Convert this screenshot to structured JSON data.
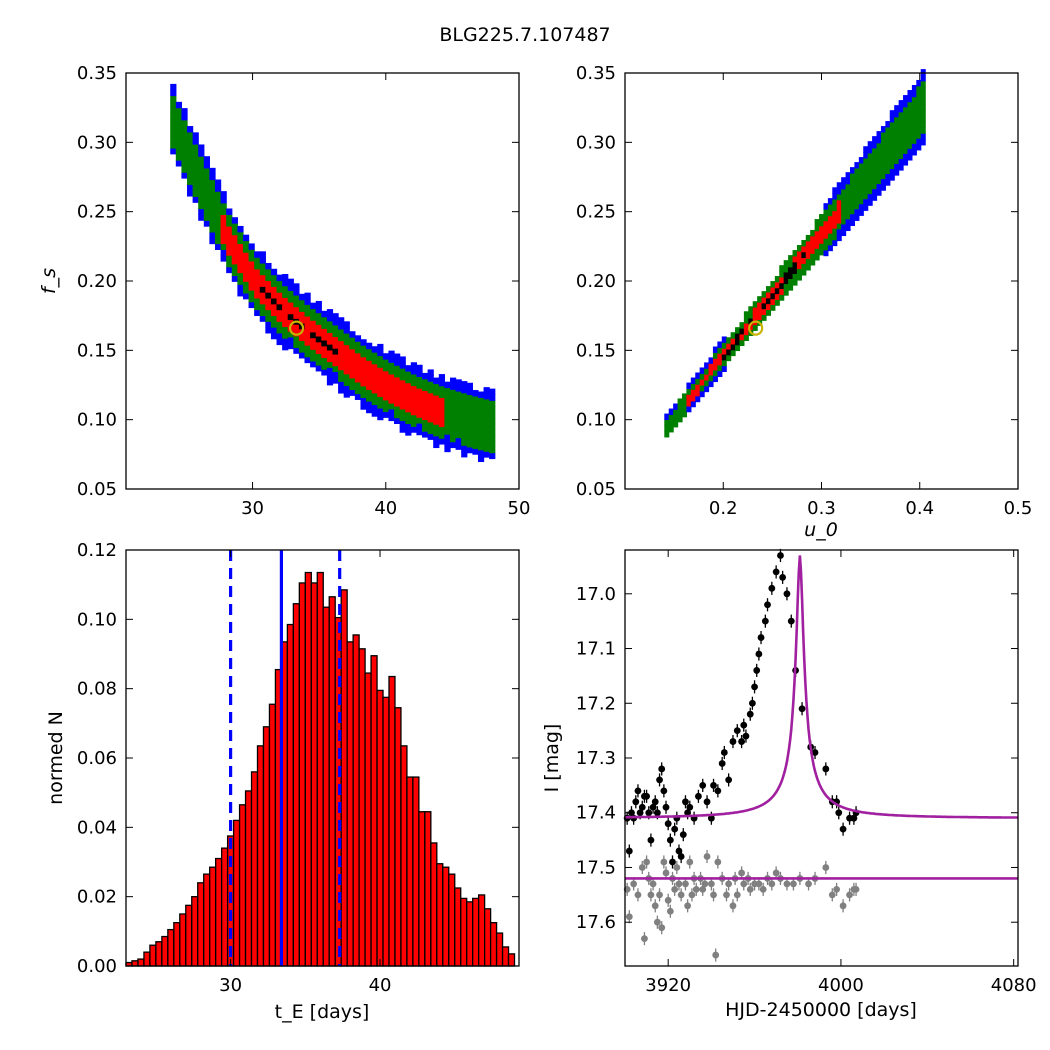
{
  "figure": {
    "title": "BLG225.7.107487"
  },
  "chart_data": [
    {
      "id": "ul",
      "type": "heatmap",
      "title": "",
      "xlabel": "",
      "ylabel": "f_s",
      "xlim": [
        20.5,
        50
      ],
      "ylim": [
        0.05,
        0.35
      ],
      "xticks": [
        30,
        40,
        50
      ],
      "yticks": [
        0.05,
        0.1,
        0.15,
        0.2,
        0.25,
        0.3,
        0.35
      ],
      "ytick_labels": [
        "0.05",
        "0.10",
        "0.15",
        "0.20",
        "0.25",
        "0.30",
        "0.35"
      ],
      "levels": [
        {
          "name": "outer",
          "color": "#0000ff"
        },
        {
          "name": "middle",
          "color": "#008000"
        },
        {
          "name": "inner",
          "color": "#ff0000"
        },
        {
          "name": "core",
          "color": "#000000"
        }
      ],
      "ridge": [
        [
          23.5,
          0.32
        ],
        [
          26,
          0.268
        ],
        [
          28,
          0.228
        ],
        [
          30,
          0.198
        ],
        [
          32,
          0.178
        ],
        [
          34,
          0.162
        ],
        [
          36,
          0.148
        ],
        [
          38,
          0.134
        ],
        [
          40,
          0.122
        ],
        [
          42,
          0.112
        ],
        [
          44,
          0.104
        ],
        [
          46,
          0.098
        ],
        [
          48,
          0.093
        ]
      ],
      "best_fit": {
        "x": 33.3,
        "y": 0.166,
        "color": "#c8b400"
      }
    },
    {
      "id": "ur",
      "type": "heatmap",
      "title": "",
      "xlabel": "u_0",
      "ylabel": "",
      "xlim": [
        0.1,
        0.5
      ],
      "ylim": [
        0.05,
        0.35
      ],
      "xticks": [
        0.2,
        0.3,
        0.4,
        0.5
      ],
      "xtick_labels": [
        "0.2",
        "0.3",
        "0.4",
        "0.5"
      ],
      "yticks": [
        0.05,
        0.1,
        0.15,
        0.2,
        0.25,
        0.3,
        0.35
      ],
      "ytick_labels": [
        "0.05",
        "0.10",
        "0.15",
        "0.20",
        "0.25",
        "0.30",
        "0.35"
      ],
      "levels": [
        {
          "name": "outer",
          "color": "#0000ff"
        },
        {
          "name": "middle",
          "color": "#008000"
        },
        {
          "name": "inner",
          "color": "#ff0000"
        },
        {
          "name": "core",
          "color": "#000000"
        }
      ],
      "ridge": [
        [
          0.14,
          0.093
        ],
        [
          0.4,
          0.322
        ]
      ],
      "best_fit": {
        "x": 0.233,
        "y": 0.166,
        "color": "#c8b400"
      }
    },
    {
      "id": "ll",
      "type": "bar",
      "title": "",
      "xlabel": "t_E [days]",
      "ylabel": "normed N",
      "xlim": [
        23,
        49.3
      ],
      "ylim": [
        0,
        0.12
      ],
      "xticks": [
        30,
        40
      ],
      "yticks": [
        0,
        0.02,
        0.04,
        0.06,
        0.08,
        0.1,
        0.12
      ],
      "ytick_labels": [
        "0.00",
        "0.02",
        "0.04",
        "0.06",
        "0.08",
        "0.10",
        "0.12"
      ],
      "bin_start": 23,
      "bin_width": 0.4,
      "values": [
        0.001,
        0.0015,
        0.002,
        0.004,
        0.006,
        0.007,
        0.0085,
        0.0105,
        0.0125,
        0.015,
        0.0175,
        0.02,
        0.024,
        0.0265,
        0.0285,
        0.031,
        0.034,
        0.0375,
        0.042,
        0.0465,
        0.0505,
        0.056,
        0.0635,
        0.069,
        0.0755,
        0.0855,
        0.0935,
        0.0985,
        0.1045,
        0.1105,
        0.1135,
        0.1105,
        0.1135,
        0.1035,
        0.1065,
        0.1005,
        0.1085,
        0.0935,
        0.0955,
        0.0915,
        0.0845,
        0.0895,
        0.0795,
        0.0775,
        0.0835,
        0.0745,
        0.0635,
        0.0545,
        0.0545,
        0.0445,
        0.0445,
        0.0355,
        0.0295,
        0.0285,
        0.0265,
        0.0225,
        0.0195,
        0.0185,
        0.0195,
        0.0205,
        0.0165,
        0.0125,
        0.0095,
        0.0055,
        0.0035,
        0.0025,
        0.0015,
        0.0015,
        0.001,
        0.001,
        0.001,
        0.0012,
        0.001,
        0.0008,
        0.001,
        0.0005
      ],
      "bar_color": "#ff0000",
      "bar_edge": "#000000",
      "vlines": [
        {
          "x": 30.0,
          "style": "dashed",
          "color": "#0000ff"
        },
        {
          "x": 33.4,
          "style": "solid",
          "color": "#0000ff"
        },
        {
          "x": 37.3,
          "style": "dashed",
          "color": "#0000ff"
        }
      ]
    },
    {
      "id": "lr",
      "type": "scatter",
      "title": "",
      "xlabel": "HJD-2450000 [days]",
      "ylabel": "I [mag]",
      "xlim": [
        3900,
        4082
      ],
      "ylim": [
        17.68,
        16.92
      ],
      "y_inverted": true,
      "xticks": [
        3920,
        4000,
        4080
      ],
      "yticks": [
        17.0,
        17.1,
        17.2,
        17.3,
        17.4,
        17.5,
        17.6
      ],
      "ytick_labels": [
        "17.0",
        "17.1",
        "17.2",
        "17.3",
        "17.4",
        "17.5",
        "17.6"
      ],
      "model": {
        "t0": 3981,
        "peak_mag": 16.93,
        "base_mag": 17.41,
        "tE": 14,
        "color": "#a020a0"
      },
      "model2": {
        "mag": 17.52,
        "color": "#a020a0"
      },
      "series": [
        {
          "color": "#000000",
          "points": [
            [
              3901,
              17.41
            ],
            [
              3902,
              17.47
            ],
            [
              3903,
              17.4
            ],
            [
              3905,
              17.38
            ],
            [
              3907,
              17.4
            ],
            [
              3908,
              17.39
            ],
            [
              3909,
              17.37
            ],
            [
              3910,
              17.37
            ],
            [
              3911,
              17.4
            ],
            [
              3912,
              17.45
            ],
            [
              3914,
              17.38
            ],
            [
              3915,
              17.4
            ],
            [
              3916,
              17.34
            ],
            [
              3917,
              17.32
            ],
            [
              3918,
              17.36
            ],
            [
              3919,
              17.39
            ],
            [
              3920,
              17.42
            ],
            [
              3921,
              17.45
            ],
            [
              3922,
              17.49
            ],
            [
              3923,
              17.43
            ],
            [
              3924,
              17.41
            ],
            [
              3925,
              17.47
            ],
            [
              3926,
              17.48
            ],
            [
              3928,
              17.38
            ],
            [
              3929,
              17.4
            ],
            [
              3930,
              17.39
            ],
            [
              3932,
              17.41
            ],
            [
              3934,
              17.37
            ],
            [
              3936,
              17.35
            ],
            [
              3938,
              17.38
            ],
            [
              3940,
              17.41
            ],
            [
              3941,
              17.35
            ],
            [
              3943,
              17.36
            ],
            [
              3945,
              17.31
            ],
            [
              3946,
              17.29
            ],
            [
              3948,
              17.34
            ],
            [
              3950,
              17.27
            ],
            [
              3952,
              17.25
            ],
            [
              3954,
              17.27
            ],
            [
              3955,
              17.24
            ],
            [
              3956,
              17.26
            ],
            [
              3958,
              17.22
            ],
            [
              3959,
              17.2
            ],
            [
              3960,
              17.17
            ],
            [
              3961,
              17.14
            ],
            [
              3962,
              17.11
            ],
            [
              3963,
              17.08
            ],
            [
              3965,
              17.05
            ],
            [
              3966,
              17.02
            ],
            [
              3968,
              16.99
            ],
            [
              3970,
              16.96
            ],
            [
              3972,
              16.93
            ],
            [
              3973,
              16.97
            ],
            [
              3975,
              17.0
            ],
            [
              3977,
              17.05
            ],
            [
              3979,
              17.14
            ],
            [
              3982,
              17.21
            ],
            [
              3986,
              17.28
            ],
            [
              3988,
              17.29
            ],
            [
              3993,
              17.32
            ],
            [
              3996,
              17.38
            ],
            [
              3998,
              17.38
            ],
            [
              3999,
              17.4
            ],
            [
              4001,
              17.43
            ],
            [
              4004,
              17.41
            ],
            [
              4006,
              17.41
            ],
            [
              4007,
              17.4
            ],
            [
              3904,
              17.41
            ],
            [
              3906,
              17.36
            ],
            [
              3913,
              17.39
            ],
            [
              3927,
              17.44
            ]
          ]
        },
        {
          "color": "#808080",
          "points": [
            [
              3901,
              17.54
            ],
            [
              3902,
              17.59
            ],
            [
              3904,
              17.53
            ],
            [
              3906,
              17.55
            ],
            [
              3908,
              17.5
            ],
            [
              3909,
              17.63
            ],
            [
              3910,
              17.49
            ],
            [
              3911,
              17.52
            ],
            [
              3912,
              17.55
            ],
            [
              3913,
              17.53
            ],
            [
              3914,
              17.57
            ],
            [
              3915,
              17.6
            ],
            [
              3916,
              17.55
            ],
            [
              3917,
              17.61
            ],
            [
              3918,
              17.49
            ],
            [
              3919,
              17.51
            ],
            [
              3920,
              17.56
            ],
            [
              3921,
              17.58
            ],
            [
              3922,
              17.52
            ],
            [
              3923,
              17.54
            ],
            [
              3924,
              17.5
            ],
            [
              3925,
              17.53
            ],
            [
              3926,
              17.55
            ],
            [
              3928,
              17.53
            ],
            [
              3929,
              17.57
            ],
            [
              3930,
              17.49
            ],
            [
              3931,
              17.55
            ],
            [
              3932,
              17.52
            ],
            [
              3933,
              17.54
            ],
            [
              3935,
              17.52
            ],
            [
              3936,
              17.54
            ],
            [
              3937,
              17.53
            ],
            [
              3938,
              17.48
            ],
            [
              3940,
              17.53
            ],
            [
              3941,
              17.55
            ],
            [
              3942,
              17.66
            ],
            [
              3943,
              17.49
            ],
            [
              3945,
              17.52
            ],
            [
              3947,
              17.55
            ],
            [
              3948,
              17.53
            ],
            [
              3950,
              17.57
            ],
            [
              3951,
              17.52
            ],
            [
              3952,
              17.55
            ],
            [
              3954,
              17.51
            ],
            [
              3955,
              17.53
            ],
            [
              3957,
              17.52
            ],
            [
              3958,
              17.54
            ],
            [
              3960,
              17.53
            ],
            [
              3962,
              17.53
            ],
            [
              3964,
              17.54
            ],
            [
              3966,
              17.52
            ],
            [
              3968,
              17.53
            ],
            [
              3970,
              17.51
            ],
            [
              3972,
              17.52
            ],
            [
              3975,
              17.53
            ],
            [
              3978,
              17.53
            ],
            [
              3981,
              17.52
            ],
            [
              3985,
              17.53
            ],
            [
              3988,
              17.52
            ],
            [
              3993,
              17.5
            ],
            [
              3996,
              17.55
            ],
            [
              3998,
              17.54
            ],
            [
              4001,
              17.57
            ],
            [
              4004,
              17.55
            ],
            [
              4006,
              17.54
            ],
            [
              4007,
              17.54
            ]
          ]
        }
      ]
    }
  ]
}
